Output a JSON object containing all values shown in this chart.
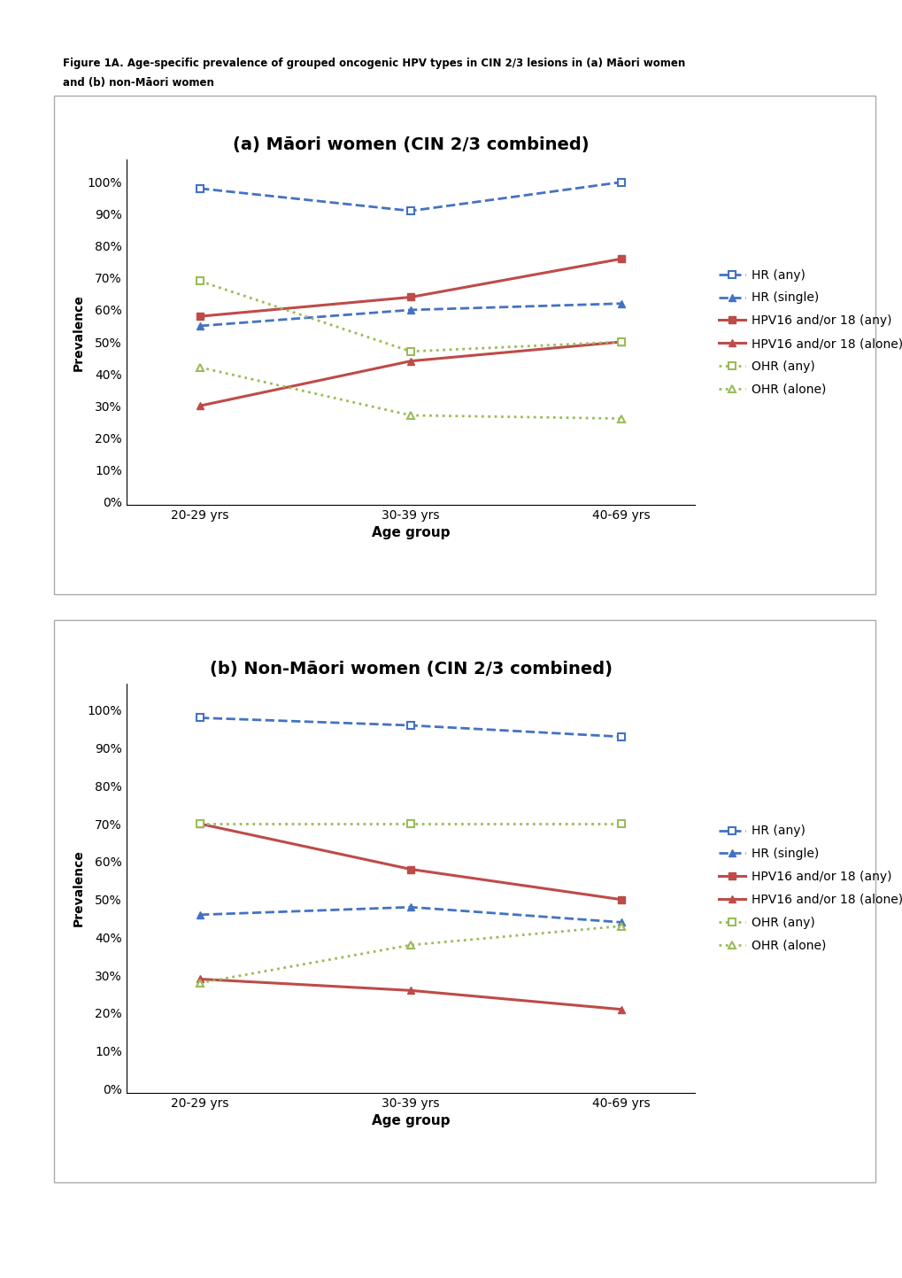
{
  "title_a": "(a) Māori women (CIN 2/3 combined)",
  "title_b": "(b) Non-Māori women (CIN 2/3 combined)",
  "figure_caption_line1": "Figure 1A. Age-specific prevalence of grouped oncogenic HPV types in CIN 2/3 lesions in (a) Māori women",
  "figure_caption_line2": "and (b) non-Māori women",
  "x_labels": [
    "20-29 yrs",
    "30-39 yrs",
    "40-69 yrs"
  ],
  "x_values": [
    0,
    1,
    2
  ],
  "xlabel": "Age group",
  "ylabel": "Prevalence",
  "yticks": [
    0.0,
    0.1,
    0.2,
    0.3,
    0.4,
    0.5,
    0.6,
    0.7,
    0.8,
    0.9,
    1.0
  ],
  "ytick_labels": [
    "0%",
    "10%",
    "20%",
    "30%",
    "40%",
    "50%",
    "60%",
    "70%",
    "80%",
    "90%",
    "100%"
  ],
  "panel_a": {
    "HR_any": [
      0.98,
      0.91,
      1.0
    ],
    "HR_single": [
      0.55,
      0.6,
      0.62
    ],
    "HPV16_18_any": [
      0.58,
      0.64,
      0.76
    ],
    "HPV16_18_alone": [
      0.3,
      0.44,
      0.5
    ],
    "OHR_any": [
      0.69,
      0.47,
      0.5
    ],
    "OHR_alone": [
      0.42,
      0.27,
      0.26
    ]
  },
  "panel_b": {
    "HR_any": [
      0.98,
      0.96,
      0.93
    ],
    "HR_single": [
      0.46,
      0.48,
      0.44
    ],
    "HPV16_18_any": [
      0.7,
      0.58,
      0.5
    ],
    "HPV16_18_alone": [
      0.29,
      0.26,
      0.21
    ],
    "OHR_any": [
      0.7,
      0.7,
      0.7
    ],
    "OHR_alone": [
      0.28,
      0.38,
      0.43
    ]
  },
  "color_blue": "#4472C4",
  "color_red": "#BE4B48",
  "color_green": "#9BBB59",
  "background_color": "#FFFFFF"
}
